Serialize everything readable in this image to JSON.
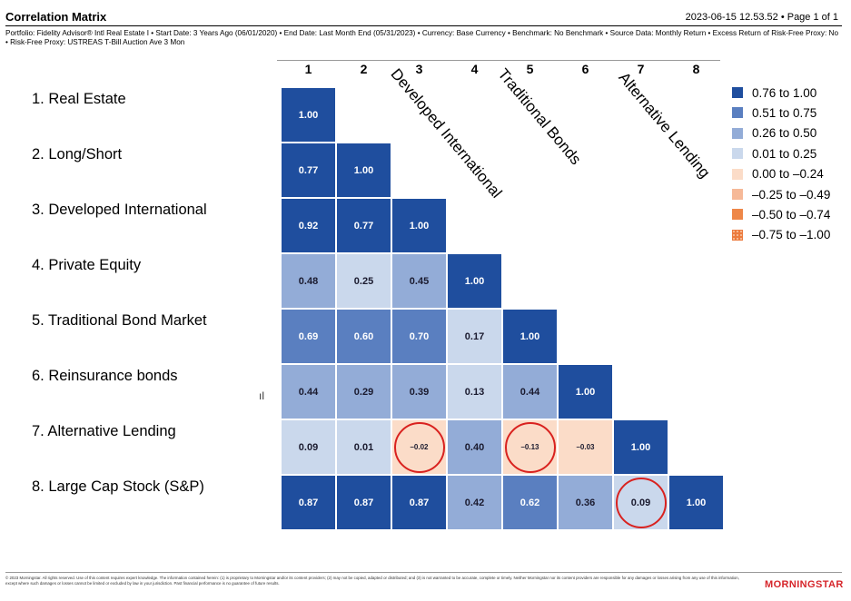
{
  "header": {
    "title": "Correlation Matrix",
    "timestamp": "2023-06-15 12.53.52 • Page 1 of 1",
    "subtitle": "Portfolio: Fidelity Advisor® Intl Real Estate I • Start Date: 3 Years Ago (06/01/2020) • End Date: Last Month End (05/31/2023) • Currency: Base Currency • Benchmark: No Benchmark • Source Data: Monthly Return • Excess Return of Risk-Free Proxy: No • Risk-Free Proxy: USTREAS T-Bill Auction Ave 3 Mon"
  },
  "chart_data": {
    "type": "heatmap",
    "columns": [
      "1",
      "2",
      "3",
      "4",
      "5",
      "6",
      "7",
      "8"
    ],
    "rows": [
      "1. Real Estate",
      "2. Long/Short",
      "3. Developed International",
      "4. Private Equity",
      "5. Traditional Bond Market",
      "6. Reinsurance bonds",
      "7. Alternative Lending",
      "8. Large Cap Stock (S&P)"
    ],
    "values": [
      [
        "1.00"
      ],
      [
        "0.77",
        "1.00"
      ],
      [
        "0.92",
        "0.77",
        "1.00"
      ],
      [
        "0.48",
        "0.25",
        "0.45",
        "1.00"
      ],
      [
        "0.69",
        "0.60",
        "0.70",
        "0.17",
        "1.00"
      ],
      [
        "0.44",
        "0.29",
        "0.39",
        "0.13",
        "0.44",
        "1.00"
      ],
      [
        "0.09",
        "0.01",
        "–0.02",
        "0.40",
        "–0.13",
        "–0.03",
        "1.00"
      ],
      [
        "0.87",
        "0.87",
        "0.87",
        "0.42",
        "0.62",
        "0.36",
        "0.09",
        "1.00"
      ]
    ],
    "legend": [
      {
        "label": "0.76 to 1.00",
        "color": "#1f4e9e"
      },
      {
        "label": "0.51 to 0.75",
        "color": "#5a7fc0"
      },
      {
        "label": "0.26 to 0.50",
        "color": "#93acd7"
      },
      {
        "label": "0.01 to 0.25",
        "color": "#cad8ec"
      },
      {
        "label": "0.00 to –0.24",
        "color": "#fbdcc8"
      },
      {
        "label": "–0.25 to –0.49",
        "color": "#f6b998"
      },
      {
        "label": "–0.50 to –0.74",
        "color": "#ee8748"
      },
      {
        "label": "–0.75 to –1.00",
        "color": "#ec7b3e"
      }
    ],
    "legend_position": "right",
    "column_annotations": [
      {
        "column": 3,
        "text": "Developed  International"
      },
      {
        "column": 5,
        "text": "Traditional Bonds"
      },
      {
        "column": 7,
        "text": "Alternative Lending"
      }
    ],
    "highlighted_cells": [
      [
        7,
        3
      ],
      [
        7,
        5
      ],
      [
        8,
        7
      ]
    ],
    "highlight_color": "#d9221f"
  },
  "footer": {
    "disclaimer": "© 2023 Morningstar. All rights reserved. Use of this content requires expert knowledge. The information contained herein: (1) is proprietary to Morningstar and/or its content providers; (2) may not be copied, adapted or distributed; and (3) is not warranted to be accurate, complete or timely. Neither Morningstar nor its content providers are responsible for any damages or losses arising from any use of this information, except where such damages or losses cannot be limited or excluded by law in your jurisdiction. Past financial performance is no guarantee of future results.",
    "brand": "MORNINGSTAR"
  }
}
